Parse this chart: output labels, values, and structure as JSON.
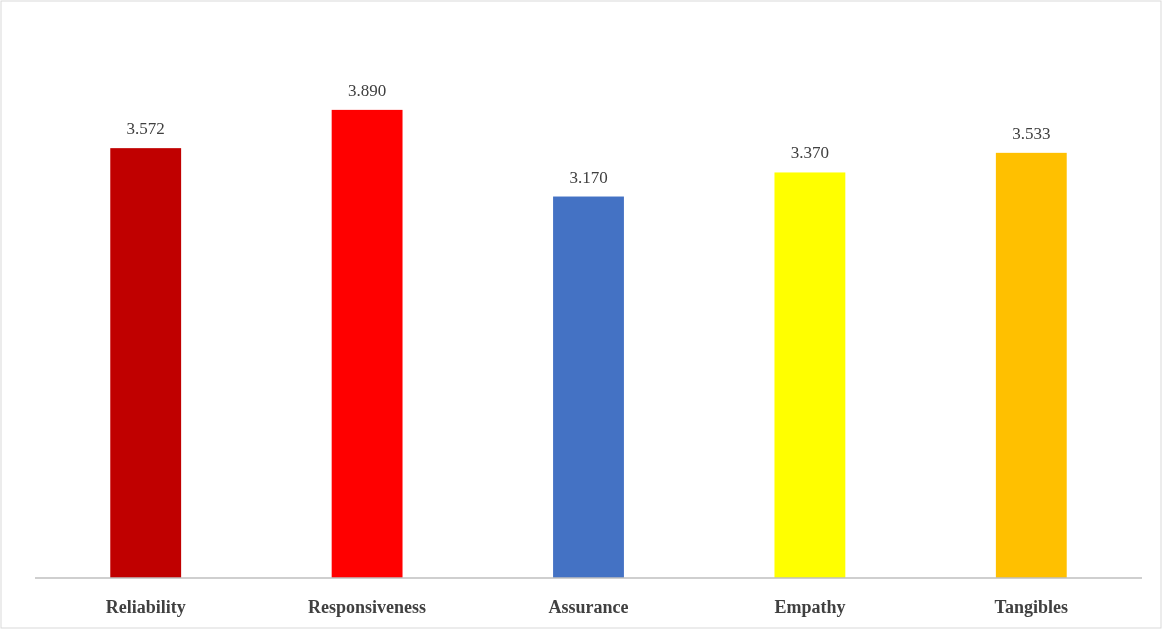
{
  "chart_data": {
    "type": "bar",
    "categories": [
      "Reliability",
      "Responsiveness",
      "Assurance",
      "Empathy",
      "Tangibles"
    ],
    "values": [
      3.572,
      3.89,
      3.17,
      3.37,
      3.533
    ],
    "value_labels": [
      "3.572",
      "3.890",
      "3.170",
      "3.370",
      "3.533"
    ],
    "colors": [
      "#c00000",
      "#ff0000",
      "#4472c4",
      "#ffff00",
      "#ffc000"
    ]
  }
}
